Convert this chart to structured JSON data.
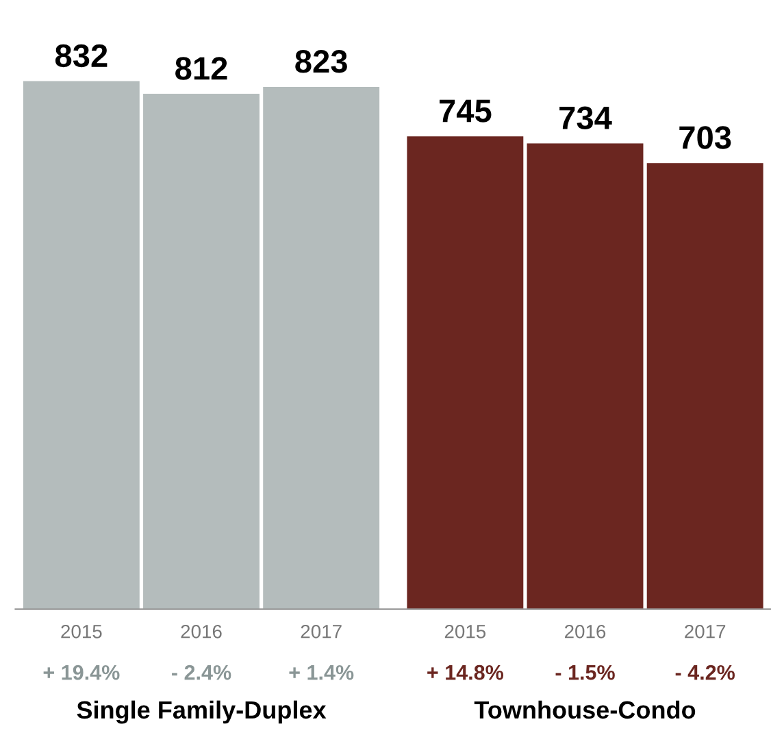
{
  "chart_data": {
    "type": "bar",
    "categories": [
      "2015",
      "2016",
      "2017",
      "2015",
      "2016",
      "2017"
    ],
    "series": [
      {
        "color": "#b4bcbc",
        "values": [
          832,
          812,
          823,
          null,
          null,
          null
        ]
      },
      {
        "color": "#6b2620",
        "values": [
          null,
          null,
          null,
          745,
          734,
          703
        ]
      }
    ],
    "data_labels": true,
    "tick_labels": "x",
    "grid": false,
    "annotations": [
      "+ 19.4%",
      "- 2.4%",
      "+ 1.4%",
      "+ 14.8%",
      "- 1.5%",
      "- 4.2%",
      "Single Family-Duplex",
      "Townhouse-Condo"
    ]
  }
}
